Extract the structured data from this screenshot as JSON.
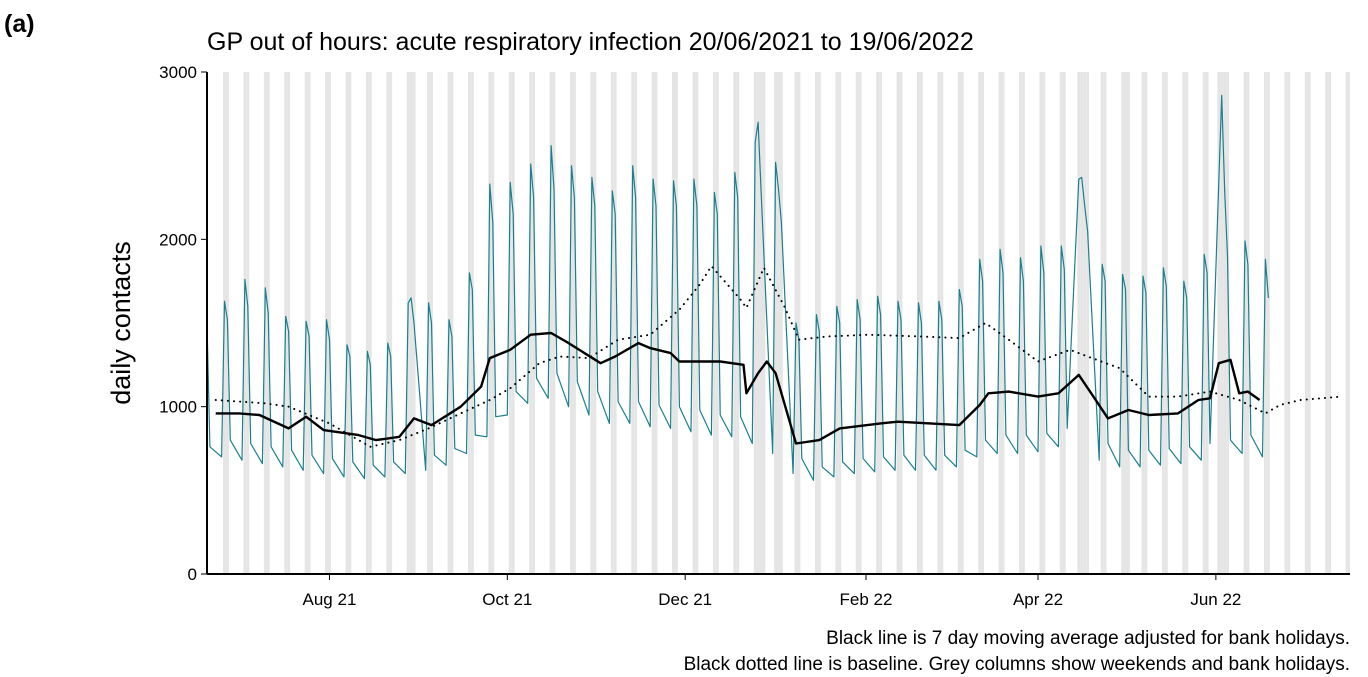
{
  "panel_label": "(a)",
  "chart_data": {
    "type": "line",
    "title": "GP out of hours: acute respiratory infection 20/06/2021 to 19/06/2022",
    "y_label": "daily contacts",
    "notes": [
      "Black line is 7 day moving average adjusted for bank holidays.",
      "Black dotted line is baseline. Grey columns show weekends and bank holidays."
    ],
    "xlim": [
      0,
      392
    ],
    "xticks": [
      {
        "value": 42,
        "label": "Aug 21"
      },
      {
        "value": 103,
        "label": "Oct 21"
      },
      {
        "value": 164,
        "label": "Dec 21"
      },
      {
        "value": 226,
        "label": "Feb 22"
      },
      {
        "value": 285,
        "label": "Apr 22"
      },
      {
        "value": 346,
        "label": "Jun 22"
      }
    ],
    "ylim": [
      0,
      3000
    ],
    "yticks": [
      0,
      1000,
      2000,
      3000
    ],
    "shade_color": "#e5e5e5",
    "shaded_days": [
      6,
      7,
      13,
      14,
      20,
      21,
      27,
      28,
      34,
      35,
      41,
      42,
      48,
      49,
      55,
      56,
      62,
      63,
      69,
      70,
      71,
      76,
      77,
      83,
      84,
      90,
      91,
      97,
      98,
      104,
      105,
      111,
      112,
      118,
      119,
      125,
      126,
      132,
      133,
      139,
      140,
      146,
      147,
      153,
      154,
      160,
      161,
      167,
      168,
      174,
      175,
      181,
      182,
      188,
      189,
      190,
      191,
      195,
      196,
      197,
      202,
      203,
      209,
      210,
      216,
      217,
      223,
      224,
      230,
      231,
      237,
      238,
      244,
      245,
      251,
      252,
      258,
      259,
      265,
      266,
      272,
      273,
      279,
      280,
      286,
      287,
      293,
      294,
      299,
      300,
      301,
      302,
      307,
      308,
      314,
      315,
      316,
      321,
      322,
      328,
      329,
      335,
      336,
      342,
      343,
      347,
      348,
      349,
      350,
      356,
      357,
      363,
      364,
      370,
      371,
      377,
      378,
      384,
      385,
      391,
      392
    ],
    "series": [
      {
        "color": "#1a7f8e",
        "line_style": "solid",
        "line_width": 1.2,
        "x": [
          0,
          1,
          5,
          6,
          7,
          8,
          12,
          13,
          14,
          15,
          19,
          20,
          21,
          22,
          26,
          27,
          28,
          29,
          33,
          34,
          35,
          36,
          40,
          41,
          42,
          43,
          47,
          48,
          49,
          50,
          54,
          55,
          56,
          57,
          61,
          62,
          63,
          64,
          68,
          69,
          70,
          71,
          75,
          76,
          77,
          78,
          82,
          83,
          84,
          85,
          89,
          90,
          91,
          92,
          96,
          97,
          98,
          99,
          103,
          104,
          105,
          106,
          110,
          111,
          112,
          113,
          117,
          118,
          119,
          120,
          124,
          125,
          126,
          127,
          131,
          132,
          133,
          134,
          138,
          139,
          140,
          141,
          145,
          146,
          147,
          148,
          152,
          153,
          154,
          155,
          159,
          160,
          161,
          162,
          166,
          167,
          168,
          169,
          173,
          174,
          175,
          176,
          180,
          181,
          182,
          183,
          187,
          188,
          189,
          190,
          194,
          195,
          196,
          197,
          201,
          202,
          203,
          204,
          208,
          209,
          210,
          211,
          215,
          216,
          217,
          218,
          222,
          223,
          224,
          225,
          229,
          230,
          231,
          232,
          236,
          237,
          238,
          239,
          243,
          244,
          245,
          246,
          250,
          251,
          252,
          253,
          257,
          258,
          259,
          260,
          264,
          265,
          266,
          267,
          271,
          272,
          273,
          274,
          278,
          279,
          280,
          281,
          285,
          286,
          287,
          288,
          292,
          293,
          294,
          295,
          299,
          300,
          301,
          302,
          306,
          307,
          308,
          309,
          313,
          314,
          315,
          316,
          320,
          321,
          322,
          323,
          327,
          328,
          329,
          330,
          334,
          335,
          336,
          337,
          341,
          342,
          343,
          344,
          348,
          349,
          350,
          351,
          355,
          356,
          357,
          358,
          362,
          363,
          364
        ],
        "values": [
          1500,
          760,
          700,
          1630,
          1520,
          800,
          680,
          1760,
          1600,
          780,
          660,
          1710,
          1560,
          760,
          640,
          1540,
          1450,
          740,
          620,
          1510,
          1420,
          710,
          600,
          1520,
          1400,
          690,
          580,
          1370,
          1300,
          670,
          570,
          1330,
          1250,
          650,
          580,
          1380,
          1300,
          670,
          600,
          1620,
          1650,
          1500,
          620,
          1620,
          1500,
          710,
          650,
          1520,
          1420,
          750,
          720,
          1800,
          1700,
          830,
          820,
          2330,
          2100,
          940,
          950,
          2340,
          2150,
          1090,
          1020,
          2450,
          2250,
          1170,
          1050,
          2560,
          2300,
          1200,
          1000,
          2440,
          2250,
          1150,
          950,
          2370,
          2200,
          1090,
          900,
          2290,
          2150,
          1030,
          900,
          2440,
          2250,
          1030,
          880,
          2360,
          2200,
          1010,
          870,
          2350,
          2200,
          1000,
          850,
          2360,
          2200,
          980,
          830,
          2280,
          2150,
          950,
          820,
          2400,
          2250,
          940,
          780,
          2580,
          2700,
          2300,
          720,
          2460,
          2300,
          2100,
          600,
          1500,
          1400,
          690,
          560,
          1550,
          1450,
          640,
          580,
          1600,
          1500,
          670,
          600,
          1640,
          1520,
          690,
          610,
          1660,
          1550,
          700,
          620,
          1630,
          1520,
          710,
          620,
          1620,
          1500,
          710,
          620,
          1630,
          1520,
          710,
          640,
          1700,
          1600,
          740,
          700,
          1880,
          1750,
          800,
          720,
          1940,
          1800,
          830,
          720,
          1890,
          1750,
          830,
          730,
          1960,
          1800,
          840,
          760,
          1960,
          1820,
          870,
          2360,
          2370,
          2200,
          2050,
          680,
          1850,
          1750,
          780,
          640,
          1790,
          1700,
          740,
          640,
          1780,
          1680,
          740,
          650,
          1830,
          1720,
          750,
          660,
          1750,
          1650,
          760,
          680,
          1910,
          1800,
          780,
          2860,
          2300,
          1900,
          800,
          720,
          1990,
          1850,
          830,
          700,
          1880,
          1650
        ]
      },
      {
        "color": "#000000",
        "line_style": "solid",
        "line_width": 2.4,
        "x": [
          3,
          11,
          18,
          28,
          34,
          40,
          52,
          58,
          66,
          71,
          77,
          87,
          94,
          97,
          104,
          111,
          118,
          124,
          135,
          140,
          148,
          152,
          159,
          162,
          176,
          184,
          185,
          189,
          192,
          195,
          200,
          202,
          210,
          217,
          231,
          237,
          248,
          258,
          265,
          268,
          275,
          285,
          292,
          299,
          304,
          309,
          316,
          323,
          333,
          340,
          344,
          347,
          351,
          354,
          357,
          361
        ],
        "values": [
          960,
          960,
          950,
          870,
          940,
          860,
          830,
          800,
          820,
          930,
          890,
          1000,
          1120,
          1290,
          1340,
          1430,
          1440,
          1380,
          1260,
          1300,
          1380,
          1350,
          1320,
          1270,
          1270,
          1250,
          1080,
          1200,
          1270,
          1200,
          900,
          780,
          800,
          870,
          900,
          910,
          900,
          890,
          1010,
          1080,
          1090,
          1060,
          1080,
          1190,
          1060,
          930,
          980,
          950,
          960,
          1040,
          1050,
          1260,
          1280,
          1080,
          1090,
          1040
        ]
      },
      {
        "color": "#000000",
        "line_style": "dotted",
        "line_width": 2,
        "x": [
          3,
          20,
          28,
          42,
          56,
          66,
          76,
          87,
          97,
          104,
          114,
          121,
          131,
          141,
          152,
          162,
          169,
          173,
          183,
          185,
          191,
          198,
          203,
          213,
          227,
          244,
          258,
          267,
          275,
          285,
          296,
          302,
          313,
          323,
          333,
          344,
          354,
          363,
          368,
          375,
          389
        ],
        "values": [
          1040,
          1020,
          1000,
          900,
          760,
          800,
          870,
          960,
          1040,
          1110,
          1260,
          1300,
          1290,
          1400,
          1430,
          1580,
          1730,
          1840,
          1640,
          1590,
          1830,
          1600,
          1400,
          1420,
          1430,
          1420,
          1410,
          1500,
          1400,
          1270,
          1340,
          1300,
          1230,
          1060,
          1060,
          1090,
          1040,
          960,
          1010,
          1040,
          1060
        ]
      }
    ]
  }
}
